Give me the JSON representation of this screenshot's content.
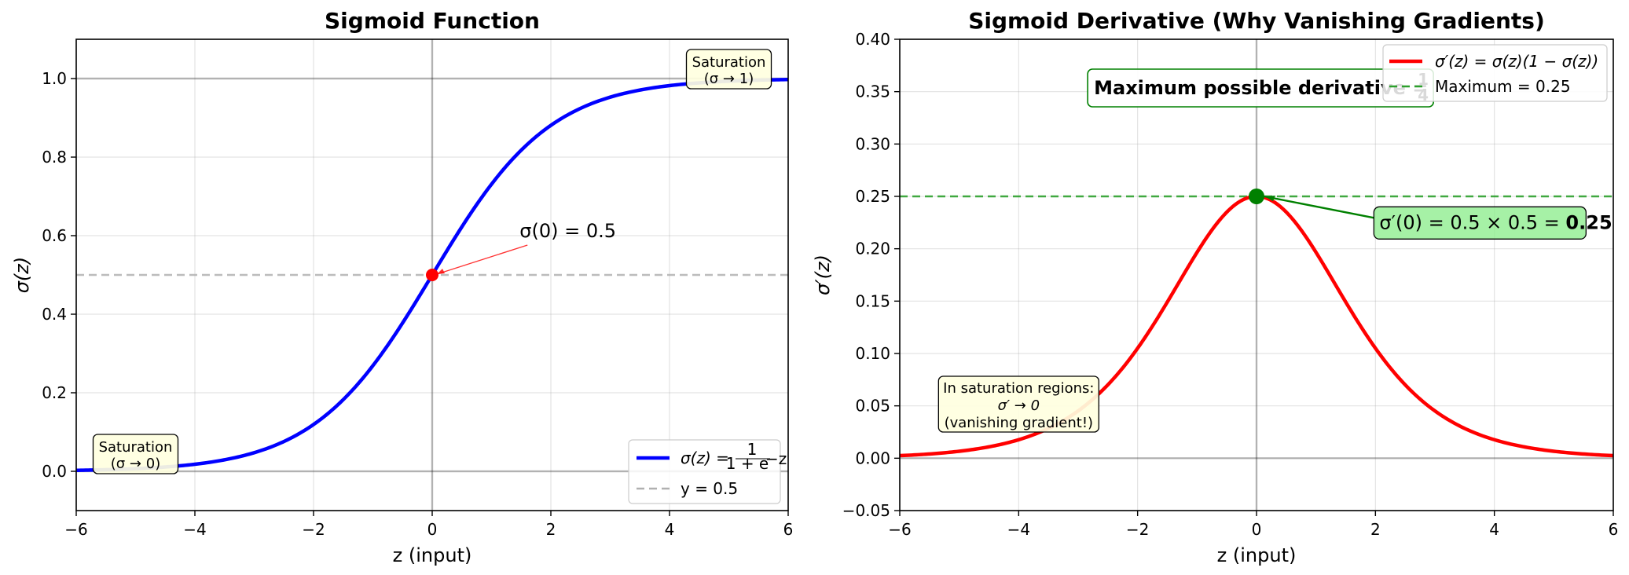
{
  "chart_data": [
    {
      "type": "line",
      "title": "Sigmoid Function",
      "xlabel": "z (input)",
      "ylabel": "σ(z)",
      "xlim": [
        -6,
        6
      ],
      "ylim": [
        -0.1,
        1.1
      ],
      "xticks": [
        -6,
        -4,
        -2,
        0,
        2,
        4,
        6
      ],
      "xtick_labels": [
        "−6",
        "−4",
        "−2",
        "0",
        "2",
        "4",
        "6"
      ],
      "yticks": [
        0.0,
        0.2,
        0.4,
        0.6,
        0.8,
        1.0
      ],
      "ytick_labels": [
        "0.0",
        "0.2",
        "0.4",
        "0.6",
        "0.8",
        "1.0"
      ],
      "grid": true,
      "legend_position": "lower-right",
      "series": [
        {
          "name": "σ(z) = 1/(1+e^(−z))",
          "color": "#0000ff",
          "style": "solid",
          "x": [
            -6,
            -5.5,
            -5,
            -4.5,
            -4,
            -3.5,
            -3,
            -2.5,
            -2,
            -1.5,
            -1,
            -0.5,
            0,
            0.5,
            1,
            1.5,
            2,
            2.5,
            3,
            3.5,
            4,
            4.5,
            5,
            5.5,
            6
          ],
          "y": [
            0.0025,
            0.0041,
            0.0067,
            0.011,
            0.018,
            0.0293,
            0.0474,
            0.0759,
            0.1192,
            0.1824,
            0.2689,
            0.3775,
            0.5,
            0.6225,
            0.7311,
            0.8176,
            0.8808,
            0.9241,
            0.9526,
            0.9707,
            0.982,
            0.989,
            0.9933,
            0.9959,
            0.9975
          ]
        },
        {
          "name": "y = 0.5",
          "color": "#b0b0b0",
          "style": "dashed",
          "x": [
            -6,
            6
          ],
          "y": [
            0.5,
            0.5
          ]
        }
      ],
      "reference_lines": {
        "horizontal": [
          0.0,
          1.0
        ],
        "vertical": [
          0
        ]
      },
      "points": [
        {
          "x": 0,
          "y": 0.5,
          "color": "#ff0000"
        }
      ],
      "legend_labels": [
        "σ(z) = ",
        "1",
        "1 + e",
        "−z",
        "y = 0.5"
      ],
      "annotations": [
        {
          "id": "sig0",
          "text": "σ(0) = 0.5",
          "x": 1.5,
          "y": 0.6,
          "arrow_to": [
            0,
            0.5
          ]
        },
        {
          "id": "sat_high",
          "lines": [
            "Saturation",
            "(σ → 1)"
          ],
          "x": 5,
          "y": 1.02
        },
        {
          "id": "sat_low",
          "lines": [
            "Saturation",
            "(σ → 0)"
          ],
          "x": -5,
          "y": 0.04
        }
      ]
    },
    {
      "type": "line",
      "title": "Sigmoid Derivative (Why Vanishing Gradients)",
      "xlabel": "z (input)",
      "ylabel": "σ′(z)",
      "xlim": [
        -6,
        6
      ],
      "ylim": [
        -0.05,
        0.4
      ],
      "xticks": [
        -6,
        -4,
        -2,
        0,
        2,
        4,
        6
      ],
      "xtick_labels": [
        "−6",
        "−4",
        "−2",
        "0",
        "2",
        "4",
        "6"
      ],
      "yticks": [
        -0.05,
        0.0,
        0.05,
        0.1,
        0.15,
        0.2,
        0.25,
        0.3,
        0.35,
        0.4
      ],
      "ytick_labels": [
        "−0.05",
        "0.00",
        "0.05",
        "0.10",
        "0.15",
        "0.20",
        "0.25",
        "0.30",
        "0.35",
        "0.40"
      ],
      "grid": true,
      "legend_position": "top-right",
      "series": [
        {
          "name": "σ′(z) = σ(z)(1 − σ(z))",
          "color": "#ff0000",
          "style": "solid",
          "x": [
            -6,
            -5.5,
            -5,
            -4.5,
            -4,
            -3.5,
            -3,
            -2.5,
            -2,
            -1.5,
            -1,
            -0.5,
            0,
            0.5,
            1,
            1.5,
            2,
            2.5,
            3,
            3.5,
            4,
            4.5,
            5,
            5.5,
            6
          ],
          "y": [
            0.0025,
            0.0041,
            0.0066,
            0.0109,
            0.0177,
            0.0285,
            0.0452,
            0.0701,
            0.105,
            0.1491,
            0.1966,
            0.235,
            0.25,
            0.235,
            0.1966,
            0.1491,
            0.105,
            0.0701,
            0.0452,
            0.0285,
            0.0177,
            0.0109,
            0.0066,
            0.0041,
            0.0025
          ]
        },
        {
          "name": "Maximum = 0.25",
          "color": "#2ca02c",
          "style": "dashed",
          "x": [
            -6,
            6
          ],
          "y": [
            0.25,
            0.25
          ]
        }
      ],
      "reference_lines": {
        "horizontal": [
          0.0
        ],
        "vertical": [
          0
        ]
      },
      "points": [
        {
          "x": 0,
          "y": 0.25,
          "color": "#008000"
        }
      ],
      "legend_labels": [
        "σ′(z) = σ(z)(1 − σ(z))",
        "Maximum = 0.25"
      ],
      "annotations": [
        {
          "id": "dmax",
          "text_prefix": "σ′(0) = 0.5 × 0.5 = ",
          "text_bold": "0.25",
          "x": 2,
          "y": 0.225,
          "arrow_to": [
            0,
            0.25
          ]
        },
        {
          "id": "maxbox",
          "text": "Maximum possible derivative = ",
          "fraction": [
            "1",
            "4"
          ],
          "x": -2.8,
          "y": 0.355
        },
        {
          "id": "satnote",
          "lines": [
            "In saturation regions:",
            "σ′ → 0",
            "(vanishing gradient!)"
          ],
          "x": -4,
          "y": 0.055
        }
      ]
    }
  ]
}
